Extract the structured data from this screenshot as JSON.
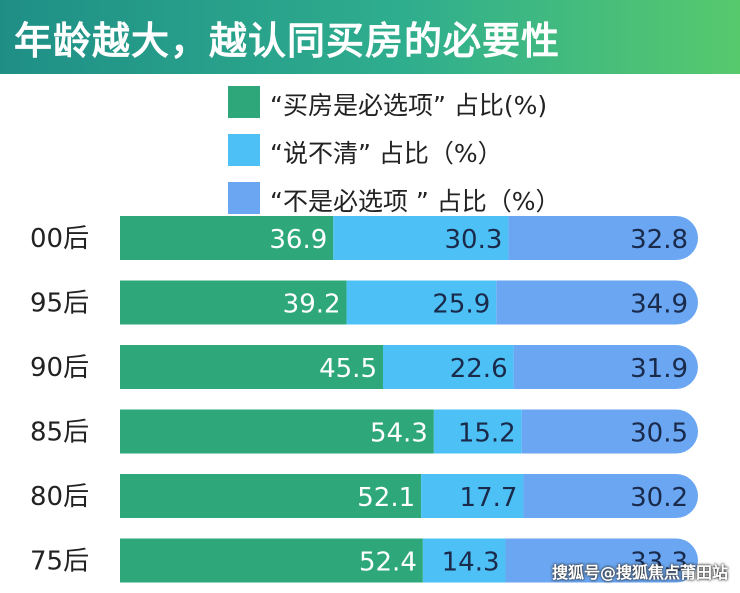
{
  "header": {
    "title": "年龄越大，越认同买房的必要性"
  },
  "legend": [
    {
      "label": "“买房是必选项” 占比(%)",
      "color": "#2ea87b"
    },
    {
      "label": "“说不清” 占比（%）",
      "color": "#4dc0f6"
    },
    {
      "label": "“不是必选项 ” 占比（%）",
      "color": "#6aa6f2"
    }
  ],
  "chart_data": {
    "type": "bar",
    "orientation": "horizontal",
    "stacked": true,
    "title": "年龄越大，越认同买房的必要性",
    "categories": [
      "00后",
      "95后",
      "90后",
      "85后",
      "80后",
      "75后"
    ],
    "series": [
      {
        "name": "“买房是必选项” 占比(%)",
        "color": "#2ea87b",
        "values": [
          36.9,
          39.2,
          45.5,
          54.3,
          52.1,
          52.4
        ]
      },
      {
        "name": "“说不清” 占比（%）",
        "color": "#4dc0f6",
        "values": [
          30.3,
          25.9,
          22.6,
          15.2,
          17.7,
          14.3
        ]
      },
      {
        "name": "“不是必选项 ” 占比（%）",
        "color": "#6aa6f2",
        "values": [
          32.8,
          34.9,
          31.9,
          30.5,
          30.2,
          33.3
        ]
      }
    ],
    "xlim": [
      0,
      100
    ],
    "grid": false,
    "legend_position": "top"
  },
  "watermark": "搜狐号@搜狐焦点莆田站"
}
